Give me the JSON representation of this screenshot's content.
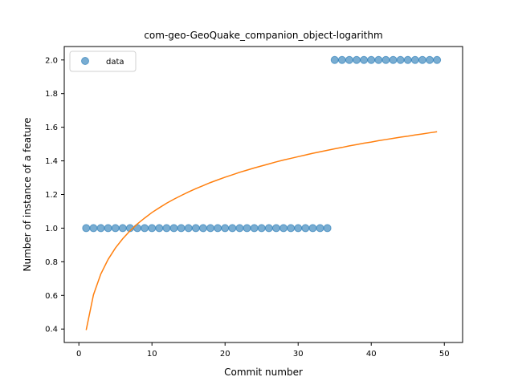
{
  "chart_data": {
    "type": "scatter",
    "title": "com-geo-GeoQuake_companion_object-logarithm",
    "xlabel": "Commit number",
    "ylabel": "Number of instance of a feature",
    "xlim": [
      -2.0,
      52.5
    ],
    "ylim": [
      0.32,
      2.08
    ],
    "xticks": [
      0,
      10,
      20,
      30,
      40,
      50
    ],
    "yticks": [
      0.4,
      0.6,
      0.8,
      1.0,
      1.2,
      1.4,
      1.6,
      1.8,
      2.0
    ],
    "grid": false,
    "legend": {
      "position": "top-left",
      "entries": [
        "data"
      ]
    },
    "colors": {
      "scatter": "#1f77b4",
      "fit": "#ff7f0e"
    },
    "series": [
      {
        "name": "data",
        "kind": "scatter",
        "x": [
          1,
          2,
          3,
          4,
          5,
          6,
          7,
          8,
          9,
          10,
          11,
          12,
          13,
          14,
          15,
          16,
          17,
          18,
          19,
          20,
          21,
          22,
          23,
          24,
          25,
          26,
          27,
          28,
          29,
          30,
          31,
          32,
          33,
          34,
          35,
          36,
          37,
          38,
          39,
          40,
          41,
          42,
          43,
          44,
          45,
          46,
          47,
          48,
          49
        ],
        "y": [
          1,
          1,
          1,
          1,
          1,
          1,
          1,
          1,
          1,
          1,
          1,
          1,
          1,
          1,
          1,
          1,
          1,
          1,
          1,
          1,
          1,
          1,
          1,
          1,
          1,
          1,
          1,
          1,
          1,
          1,
          1,
          1,
          1,
          1,
          2,
          2,
          2,
          2,
          2,
          2,
          2,
          2,
          2,
          2,
          2,
          2,
          2,
          2,
          2
        ]
      },
      {
        "kind": "line",
        "x": [
          1,
          2,
          3,
          4,
          5,
          6,
          7,
          8,
          9,
          10,
          11,
          12,
          13,
          14,
          15,
          16,
          17,
          18,
          19,
          20,
          21,
          22,
          23,
          24,
          25,
          26,
          27,
          28,
          29,
          30,
          31,
          32,
          33,
          34,
          35,
          36,
          37,
          38,
          39,
          40,
          41,
          42,
          43,
          44,
          45,
          46,
          47,
          48,
          49
        ],
        "y": [
          0.394,
          0.604,
          0.727,
          0.814,
          0.882,
          0.937,
          0.984,
          1.025,
          1.06,
          1.093,
          1.121,
          1.148,
          1.172,
          1.194,
          1.215,
          1.235,
          1.253,
          1.271,
          1.287,
          1.303,
          1.317,
          1.332,
          1.345,
          1.358,
          1.37,
          1.382,
          1.394,
          1.405,
          1.415,
          1.425,
          1.435,
          1.445,
          1.454,
          1.463,
          1.472,
          1.48,
          1.489,
          1.497,
          1.505,
          1.512,
          1.52,
          1.527,
          1.534,
          1.541,
          1.547,
          1.554,
          1.56,
          1.567,
          1.573
        ]
      }
    ]
  }
}
